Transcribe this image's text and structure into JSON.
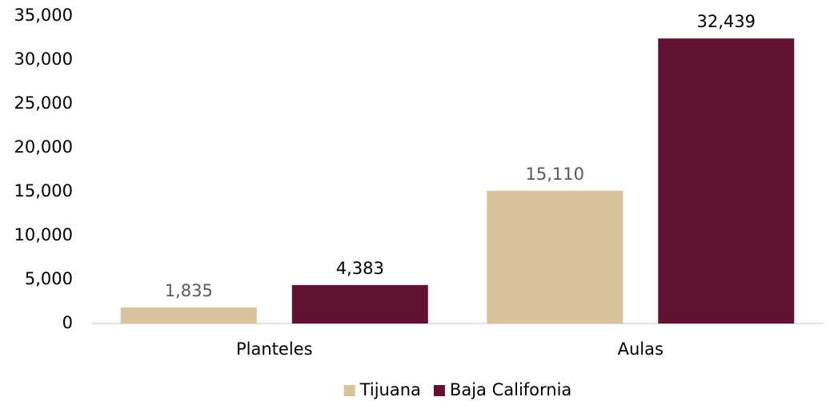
{
  "chart_data": {
    "type": "bar",
    "categories": [
      "Planteles",
      "Aulas"
    ],
    "series": [
      {
        "name": "Tijuana",
        "values": [
          1835,
          15110
        ],
        "labels": [
          "1,835",
          "15,110"
        ],
        "color": "#d6c29b",
        "label_color": "#595959"
      },
      {
        "name": "Baja California",
        "values": [
          4383,
          32439
        ],
        "labels": [
          "4,383",
          "32,439"
        ],
        "color": "#611232",
        "label_color": "#000000"
      }
    ],
    "yticks": [
      "0",
      "5,000",
      "10,000",
      "15,000",
      "20,000",
      "25,000",
      "30,000",
      "35,000"
    ],
    "ylim": [
      0,
      35000
    ],
    "grid": false,
    "legend_position": "bottom",
    "axis_color": "#d9d9d9"
  }
}
